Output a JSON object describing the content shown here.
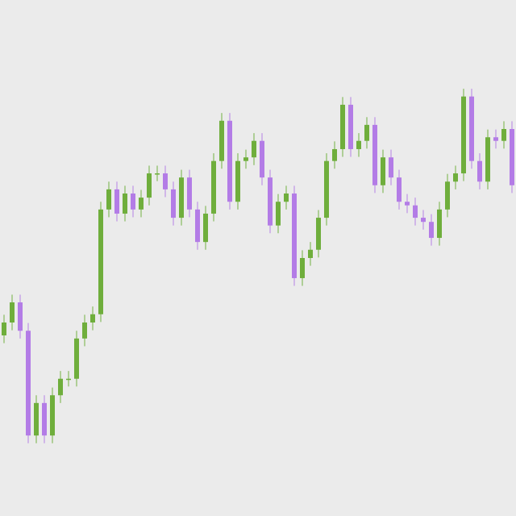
{
  "chart_data": {
    "type": "candlestick",
    "up_color": "#6fae3c",
    "down_color": "#b37ce6",
    "ylim": [
      0,
      100
    ],
    "open": [
      35.0,
      37.5,
      41.4,
      35.9,
      15.6,
      21.9,
      15.6,
      23.4,
      26.6,
      26.6,
      34.4,
      37.5,
      39.1,
      59.4,
      63.3,
      58.6,
      62.5,
      59.4,
      61.7,
      66.4,
      66.4,
      63.3,
      57.8,
      65.6,
      59.4,
      53.1,
      58.6,
      68.8,
      76.6,
      60.9,
      68.8,
      69.5,
      72.7,
      65.6,
      56.3,
      60.9,
      62.5,
      46.1,
      50.0,
      51.6,
      57.8,
      68.8,
      71.1,
      79.7,
      71.1,
      72.7,
      75.8,
      64.1,
      69.5,
      65.6,
      60.9,
      60.2,
      57.8,
      57.0,
      53.9,
      59.4,
      64.8,
      66.4,
      81.3,
      68.8,
      64.8,
      73.4,
      72.7,
      75.0
    ],
    "high": [
      39.0,
      42.9,
      42.9,
      37.4,
      23.4,
      23.4,
      24.9,
      28.1,
      28.1,
      35.9,
      39.0,
      40.6,
      60.9,
      64.8,
      64.8,
      64.0,
      64.0,
      63.2,
      67.9,
      67.9,
      67.9,
      64.8,
      67.1,
      67.1,
      60.9,
      60.1,
      70.3,
      78.1,
      78.1,
      70.3,
      71.0,
      74.2,
      74.2,
      67.1,
      62.4,
      64.0,
      64.0,
      51.5,
      53.1,
      59.3,
      70.3,
      72.6,
      81.2,
      81.2,
      74.2,
      77.3,
      77.3,
      71.0,
      71.0,
      67.1,
      62.4,
      61.7,
      59.3,
      58.5,
      60.9,
      66.3,
      67.9,
      82.8,
      82.8,
      70.3,
      74.9,
      74.9,
      76.5,
      76.5
    ],
    "low": [
      33.5,
      36.0,
      34.4,
      14.1,
      14.1,
      14.1,
      14.1,
      21.9,
      25.1,
      25.1,
      32.9,
      36.0,
      37.6,
      57.9,
      57.1,
      57.1,
      57.9,
      57.9,
      60.2,
      64.9,
      61.8,
      56.3,
      56.3,
      57.9,
      51.6,
      51.6,
      57.1,
      67.3,
      59.4,
      59.4,
      67.3,
      68.0,
      64.1,
      54.8,
      54.8,
      59.4,
      44.6,
      44.6,
      48.5,
      50.1,
      56.3,
      67.3,
      69.6,
      69.6,
      69.6,
      71.2,
      62.6,
      62.6,
      64.1,
      59.4,
      58.7,
      56.3,
      55.5,
      52.4,
      52.4,
      57.9,
      63.3,
      64.9,
      67.3,
      63.3,
      63.3,
      71.2,
      71.2,
      62.6
    ],
    "close": [
      37.5,
      41.4,
      35.9,
      15.6,
      21.9,
      15.6,
      23.4,
      26.6,
      26.6,
      34.4,
      37.5,
      39.1,
      59.4,
      63.3,
      58.6,
      62.5,
      59.4,
      61.7,
      66.4,
      66.4,
      63.3,
      57.8,
      65.6,
      59.4,
      53.1,
      58.6,
      68.8,
      76.6,
      60.9,
      68.8,
      69.5,
      72.7,
      65.6,
      56.3,
      60.9,
      62.5,
      46.1,
      50.0,
      51.6,
      57.8,
      68.8,
      71.1,
      79.7,
      71.1,
      72.7,
      75.8,
      64.1,
      69.5,
      65.6,
      60.9,
      60.2,
      57.8,
      57.0,
      53.9,
      59.4,
      64.8,
      66.4,
      81.3,
      68.8,
      64.8,
      73.4,
      72.7,
      75.0,
      64.1
    ]
  }
}
